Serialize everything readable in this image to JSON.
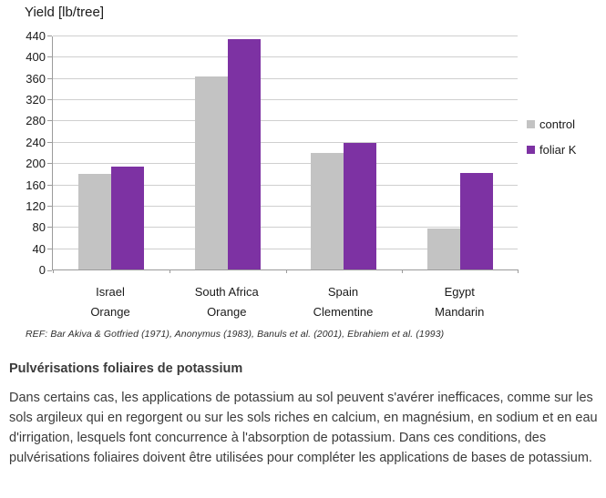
{
  "chart_data": {
    "type": "bar",
    "title": "Yield [lb/tree]",
    "categories": [
      {
        "region": "Israel",
        "variety": "Orange"
      },
      {
        "region": "South Africa",
        "variety": "Orange"
      },
      {
        "region": "Spain",
        "variety": "Clementine"
      },
      {
        "region": "Egypt",
        "variety": "Mandarin"
      }
    ],
    "series": [
      {
        "name": "control",
        "color": "#c3c3c3",
        "values": [
          180,
          363,
          220,
          77
        ]
      },
      {
        "name": "foliar K",
        "color": "#7d32a3",
        "values": [
          194,
          433,
          238,
          182
        ]
      }
    ],
    "ylim": [
      0,
      440
    ],
    "ytick_step": 40,
    "grid": true,
    "legend_position": "right",
    "reference": "REF: Bar Akiva & Gotfried (1971), Anonymus (1983), Banuls et al. (2001), Ebrahiem et al. (1993)"
  },
  "article": {
    "heading": "Pulvérisations foliaires de potassium",
    "body": "Dans certains cas, les applications de potassium au sol peuvent s'avérer inefficaces, comme sur les sols argileux qui en regorgent ou sur les sols riches en calcium, en magnésium, en sodium et en eau d'irrigation, lesquels font concurrence à l'absorption de potassium. Dans ces conditions, des pulvérisations foliaires doivent être utilisées pour compléter les applications de bases de potassium."
  }
}
